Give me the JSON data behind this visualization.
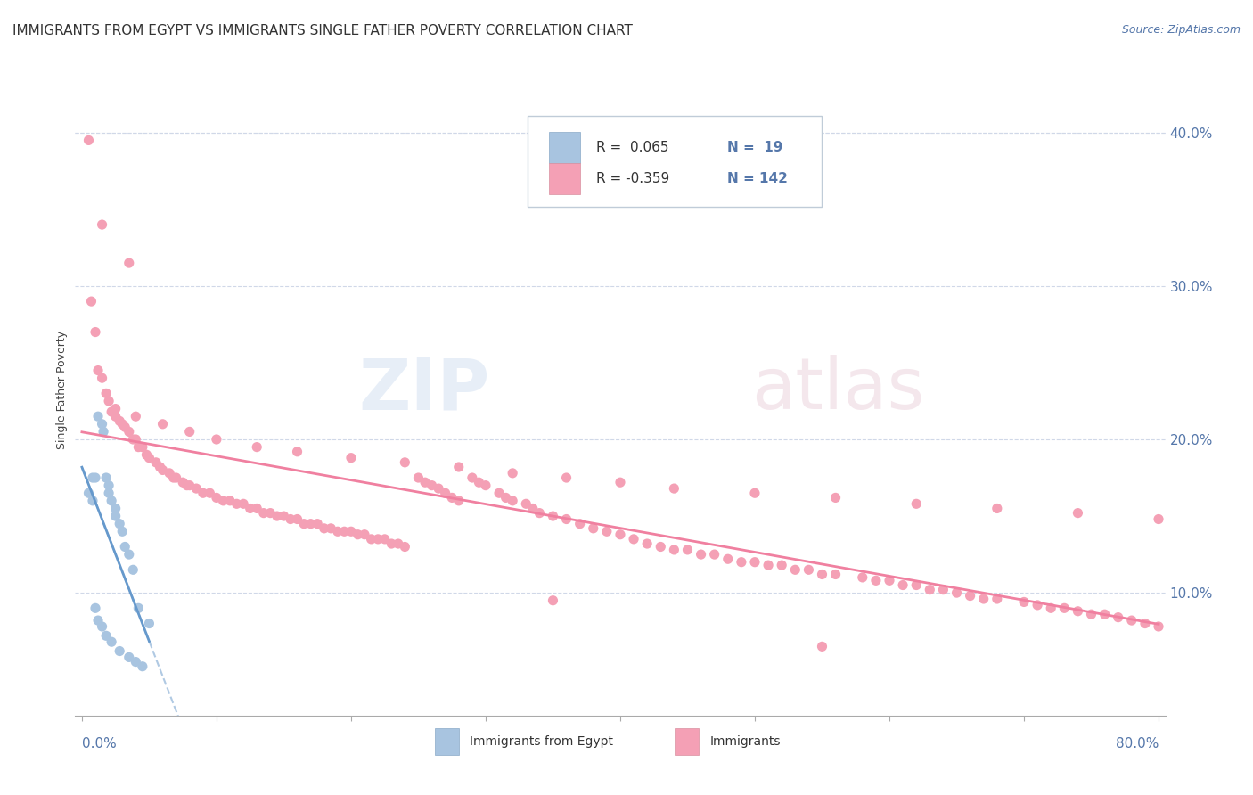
{
  "title": "IMMIGRANTS FROM EGYPT VS IMMIGRANTS SINGLE FATHER POVERTY CORRELATION CHART",
  "source": "Source: ZipAtlas.com",
  "ylabel": "Single Father Poverty",
  "y_tick_labels": [
    "10.0%",
    "20.0%",
    "30.0%",
    "40.0%"
  ],
  "y_tick_values": [
    0.1,
    0.2,
    0.3,
    0.4
  ],
  "xlim": [
    -0.005,
    0.805
  ],
  "ylim": [
    0.02,
    0.445
  ],
  "color_egypt": "#a8c4e0",
  "color_immigrants": "#f4a0b5",
  "trendline_egypt_solid": "#6699cc",
  "trendline_egypt_dashed": "#a8c4e0",
  "trendline_immigrants_color": "#f080a0",
  "background_color": "#ffffff",
  "grid_color": "#d0d8e8",
  "legend_box_color": "#e8eef5",
  "legend_border_color": "#c0ccd8",
  "egypt_x": [
    0.005,
    0.008,
    0.01,
    0.012,
    0.015,
    0.016,
    0.018,
    0.02,
    0.02,
    0.022,
    0.025,
    0.025,
    0.028,
    0.03,
    0.032,
    0.035,
    0.038,
    0.042,
    0.05,
    0.008,
    0.01,
    0.012,
    0.015,
    0.018,
    0.022,
    0.028,
    0.035,
    0.04,
    0.045
  ],
  "egypt_y": [
    0.165,
    0.16,
    0.175,
    0.215,
    0.21,
    0.205,
    0.175,
    0.17,
    0.165,
    0.16,
    0.155,
    0.15,
    0.145,
    0.14,
    0.13,
    0.125,
    0.115,
    0.09,
    0.08,
    0.175,
    0.09,
    0.082,
    0.078,
    0.072,
    0.068,
    0.062,
    0.058,
    0.055,
    0.052
  ],
  "imm_x": [
    0.005,
    0.007,
    0.01,
    0.012,
    0.015,
    0.018,
    0.02,
    0.022,
    0.025,
    0.028,
    0.03,
    0.032,
    0.035,
    0.038,
    0.04,
    0.042,
    0.045,
    0.048,
    0.05,
    0.055,
    0.058,
    0.06,
    0.065,
    0.068,
    0.07,
    0.075,
    0.078,
    0.08,
    0.085,
    0.09,
    0.095,
    0.1,
    0.105,
    0.11,
    0.115,
    0.12,
    0.125,
    0.13,
    0.135,
    0.14,
    0.145,
    0.15,
    0.155,
    0.16,
    0.165,
    0.17,
    0.175,
    0.18,
    0.185,
    0.19,
    0.195,
    0.2,
    0.205,
    0.21,
    0.215,
    0.22,
    0.225,
    0.23,
    0.235,
    0.24,
    0.25,
    0.255,
    0.26,
    0.265,
    0.27,
    0.275,
    0.28,
    0.29,
    0.295,
    0.3,
    0.31,
    0.315,
    0.32,
    0.33,
    0.335,
    0.34,
    0.35,
    0.36,
    0.37,
    0.38,
    0.39,
    0.4,
    0.41,
    0.42,
    0.43,
    0.44,
    0.45,
    0.46,
    0.47,
    0.48,
    0.49,
    0.5,
    0.51,
    0.52,
    0.53,
    0.54,
    0.55,
    0.56,
    0.58,
    0.59,
    0.6,
    0.61,
    0.62,
    0.63,
    0.64,
    0.65,
    0.66,
    0.67,
    0.68,
    0.7,
    0.71,
    0.72,
    0.73,
    0.74,
    0.75,
    0.76,
    0.77,
    0.78,
    0.79,
    0.8,
    0.025,
    0.04,
    0.06,
    0.08,
    0.1,
    0.13,
    0.16,
    0.2,
    0.24,
    0.28,
    0.32,
    0.36,
    0.4,
    0.44,
    0.5,
    0.56,
    0.62,
    0.68,
    0.74,
    0.8,
    0.015,
    0.035,
    0.35,
    0.55
  ],
  "imm_y": [
    0.395,
    0.29,
    0.27,
    0.245,
    0.24,
    0.23,
    0.225,
    0.218,
    0.215,
    0.212,
    0.21,
    0.208,
    0.205,
    0.2,
    0.2,
    0.195,
    0.195,
    0.19,
    0.188,
    0.185,
    0.182,
    0.18,
    0.178,
    0.175,
    0.175,
    0.172,
    0.17,
    0.17,
    0.168,
    0.165,
    0.165,
    0.162,
    0.16,
    0.16,
    0.158,
    0.158,
    0.155,
    0.155,
    0.152,
    0.152,
    0.15,
    0.15,
    0.148,
    0.148,
    0.145,
    0.145,
    0.145,
    0.142,
    0.142,
    0.14,
    0.14,
    0.14,
    0.138,
    0.138,
    0.135,
    0.135,
    0.135,
    0.132,
    0.132,
    0.13,
    0.175,
    0.172,
    0.17,
    0.168,
    0.165,
    0.162,
    0.16,
    0.175,
    0.172,
    0.17,
    0.165,
    0.162,
    0.16,
    0.158,
    0.155,
    0.152,
    0.15,
    0.148,
    0.145,
    0.142,
    0.14,
    0.138,
    0.135,
    0.132,
    0.13,
    0.128,
    0.128,
    0.125,
    0.125,
    0.122,
    0.12,
    0.12,
    0.118,
    0.118,
    0.115,
    0.115,
    0.112,
    0.112,
    0.11,
    0.108,
    0.108,
    0.105,
    0.105,
    0.102,
    0.102,
    0.1,
    0.098,
    0.096,
    0.096,
    0.094,
    0.092,
    0.09,
    0.09,
    0.088,
    0.086,
    0.086,
    0.084,
    0.082,
    0.08,
    0.078,
    0.22,
    0.215,
    0.21,
    0.205,
    0.2,
    0.195,
    0.192,
    0.188,
    0.185,
    0.182,
    0.178,
    0.175,
    0.172,
    0.168,
    0.165,
    0.162,
    0.158,
    0.155,
    0.152,
    0.148,
    0.34,
    0.315,
    0.095,
    0.065
  ]
}
